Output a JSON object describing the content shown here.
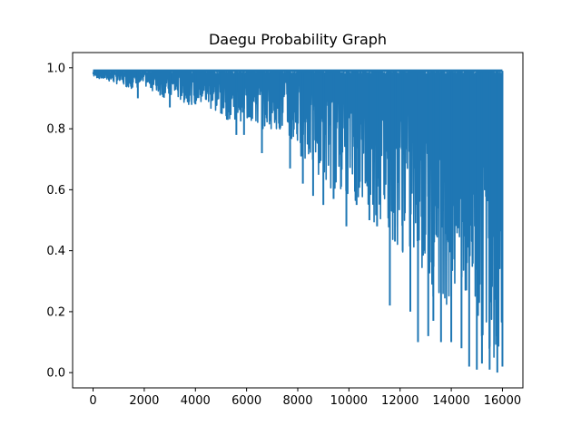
{
  "chart_data": {
    "type": "line",
    "title": "Daegu Probability Graph",
    "xlabel": "",
    "ylabel": "",
    "xlim": [
      -800,
      16800
    ],
    "ylim": [
      -0.05,
      1.05
    ],
    "xticks": [
      0,
      2000,
      4000,
      6000,
      8000,
      10000,
      12000,
      14000,
      16000
    ],
    "xtick_labels": [
      "0",
      "2000",
      "4000",
      "6000",
      "8000",
      "10000",
      "12000",
      "14000",
      "16000"
    ],
    "yticks": [
      0.0,
      0.2,
      0.4,
      0.6,
      0.8,
      1.0
    ],
    "ytick_labels": [
      "0.0",
      "0.2",
      "0.4",
      "0.6",
      "0.8",
      "1.0"
    ],
    "grid": false,
    "legend": "none",
    "series": [
      {
        "color": "#1f77b4",
        "x": [
          0,
          400,
          800,
          1200,
          1600,
          2000,
          2400,
          2800,
          3200,
          3600,
          4000,
          4400,
          4800,
          5200,
          5600,
          6000,
          6400,
          6800,
          7200,
          7600,
          8000,
          8400,
          8800,
          9200,
          9600,
          10000,
          10400,
          10800,
          11200,
          11600,
          12000,
          12400,
          12800,
          13200,
          13600,
          14000,
          14400,
          14800,
          15200,
          15600,
          16000
        ],
        "upper": [
          0.99,
          0.99,
          0.99,
          0.99,
          0.99,
          0.99,
          0.99,
          0.99,
          0.99,
          0.99,
          0.99,
          0.99,
          0.99,
          0.99,
          0.99,
          0.99,
          0.99,
          0.99,
          0.99,
          0.99,
          0.99,
          0.99,
          0.99,
          0.99,
          0.99,
          0.99,
          0.99,
          0.99,
          0.99,
          0.99,
          0.99,
          0.99,
          0.99,
          0.99,
          0.99,
          0.99,
          0.99,
          0.99,
          0.99,
          0.99,
          0.99
        ],
        "lower": [
          0.97,
          0.96,
          0.95,
          0.94,
          0.93,
          0.94,
          0.92,
          0.9,
          0.9,
          0.88,
          0.88,
          0.87,
          0.85,
          0.83,
          0.83,
          0.82,
          0.8,
          0.8,
          0.8,
          0.75,
          0.72,
          0.68,
          0.65,
          0.6,
          0.6,
          0.58,
          0.55,
          0.5,
          0.48,
          0.45,
          0.4,
          0.35,
          0.3,
          0.25,
          0.25,
          0.2,
          0.2,
          0.15,
          0.1,
          0.05,
          0.02
        ],
        "dips": [
          [
            1750,
            0.9
          ],
          [
            3000,
            0.87
          ],
          [
            4000,
            0.88
          ],
          [
            5000,
            0.85
          ],
          [
            5600,
            0.78
          ],
          [
            5900,
            0.78
          ],
          [
            6600,
            0.72
          ],
          [
            7300,
            0.8
          ],
          [
            7700,
            0.67
          ],
          [
            8200,
            0.62
          ],
          [
            8600,
            0.58
          ],
          [
            9000,
            0.55
          ],
          [
            9400,
            0.57
          ],
          [
            9900,
            0.48
          ],
          [
            10300,
            0.55
          ],
          [
            10800,
            0.5
          ],
          [
            11100,
            0.48
          ],
          [
            11600,
            0.22
          ],
          [
            11800,
            0.43
          ],
          [
            12100,
            0.4
          ],
          [
            12400,
            0.2
          ],
          [
            12700,
            0.1
          ],
          [
            13100,
            0.12
          ],
          [
            13300,
            0.17
          ],
          [
            13600,
            0.1
          ],
          [
            14000,
            0.1
          ],
          [
            14400,
            0.08
          ],
          [
            14700,
            0.02
          ],
          [
            15000,
            0.01
          ],
          [
            15200,
            0.03
          ],
          [
            15500,
            0.01
          ],
          [
            15800,
            0.0
          ],
          [
            16000,
            0.02
          ]
        ]
      }
    ]
  }
}
